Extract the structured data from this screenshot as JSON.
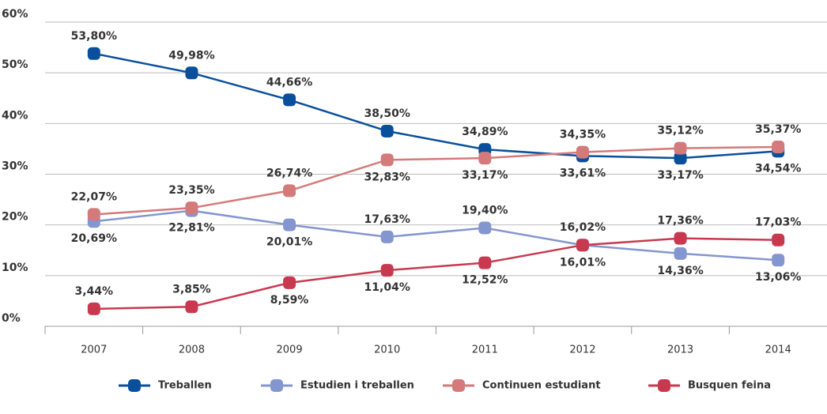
{
  "chart_data": {
    "type": "line",
    "categories": [
      "2007",
      "2008",
      "2009",
      "2010",
      "2011",
      "2012",
      "2013",
      "2014"
    ],
    "series": [
      {
        "name": "Treballen",
        "color": "#0a4f9c",
        "values": [
          53.8,
          49.98,
          44.66,
          38.5,
          34.89,
          33.61,
          33.17,
          34.54
        ],
        "value_labels": [
          "53,80%",
          "49,98%",
          "44,66%",
          "38,50%",
          "34,89%",
          "33,61%",
          "33,17%",
          "34,54%"
        ]
      },
      {
        "name": "Estudien i treballen",
        "color": "#8496cf",
        "values": [
          20.69,
          22.81,
          20.01,
          17.63,
          19.4,
          16.01,
          14.36,
          13.06
        ],
        "value_labels": [
          "20,69%",
          "22,81%",
          "20,01%",
          "17,63%",
          "19,40%",
          "16,01%",
          "14,36%",
          "13,06%"
        ]
      },
      {
        "name": "Continuen estudiant",
        "color": "#d47a7a",
        "values": [
          22.07,
          23.35,
          26.74,
          32.83,
          33.17,
          34.35,
          35.12,
          35.37
        ],
        "value_labels": [
          "22,07%",
          "23,35%",
          "26,74%",
          "32,83%",
          "33,17%",
          "34,35%",
          "35,12%",
          "35,37%"
        ]
      },
      {
        "name": "Busquen feina",
        "color": "#c8394f",
        "values": [
          3.44,
          3.85,
          8.59,
          11.04,
          12.52,
          16.02,
          17.36,
          17.03
        ],
        "value_labels": [
          "3,44%",
          "3,85%",
          "8,59%",
          "11,04%",
          "12,52%",
          "16,02%",
          "17,36%",
          "17,03%"
        ]
      }
    ],
    "ylim": [
      0,
      60
    ],
    "yticks": [
      {
        "value": 0,
        "label": "0%"
      },
      {
        "value": 10,
        "label": "10%"
      },
      {
        "value": 20,
        "label": "20%"
      },
      {
        "value": 30,
        "label": "30%"
      },
      {
        "value": 40,
        "label": "40%"
      },
      {
        "value": 50,
        "label": "50%"
      },
      {
        "value": 60,
        "label": "60%"
      }
    ],
    "grid": true,
    "legend": "bottom"
  }
}
